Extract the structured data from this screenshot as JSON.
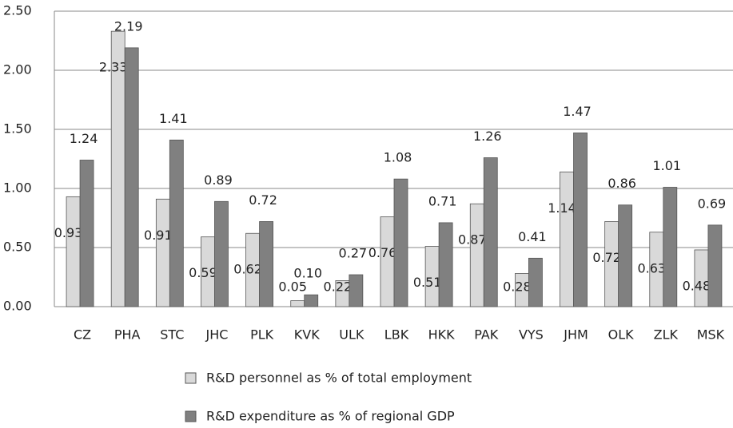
{
  "chart_data": {
    "type": "bar",
    "categories": [
      "CZ",
      "PHA",
      "STC",
      "JHC",
      "PLK",
      "KVK",
      "ULK",
      "LBK",
      "HKK",
      "PAK",
      "VYS",
      "JHM",
      "OLK",
      "ZLK",
      "MSK"
    ],
    "series": [
      {
        "name": "R&D personnel as % of total employment",
        "color": "#d9d9d9",
        "values": [
          0.93,
          2.33,
          0.91,
          0.59,
          0.62,
          0.05,
          0.22,
          0.76,
          0.51,
          0.87,
          0.28,
          1.14,
          0.72,
          0.63,
          0.48
        ],
        "value_labels": [
          "0.93",
          "2.33",
          "0.91",
          "0.59",
          "0.62",
          "0.05",
          "0.22",
          "0.76",
          "0.51",
          "0.87",
          "0.28",
          "1.14",
          "0.72",
          "0.63",
          "0.48"
        ]
      },
      {
        "name": "R&D expenditure as % of regional GDP",
        "color": "#808080",
        "values": [
          1.24,
          2.19,
          1.41,
          0.89,
          0.72,
          0.1,
          0.27,
          1.08,
          0.71,
          1.26,
          0.41,
          1.47,
          0.86,
          1.01,
          0.69
        ],
        "value_labels": [
          "1.24",
          "2.19",
          "1.41",
          "0.89",
          "0.72",
          "0.10",
          "0.27",
          "1.08",
          "0.71",
          "1.26",
          "0.41",
          "1.47",
          "0.86",
          "1.01",
          "0.69"
        ]
      }
    ],
    "ylim": [
      0,
      2.5
    ],
    "yticks": [
      {
        "value": 0,
        "label": "0.00"
      },
      {
        "value": 0.5,
        "label": "0.50"
      },
      {
        "value": 1,
        "label": "1.00"
      },
      {
        "value": 1.5,
        "label": "1.50"
      },
      {
        "value": 2,
        "label": "2.00"
      },
      {
        "value": 2.5,
        "label": "2.50"
      }
    ],
    "grid": true,
    "legend": "bottom"
  }
}
